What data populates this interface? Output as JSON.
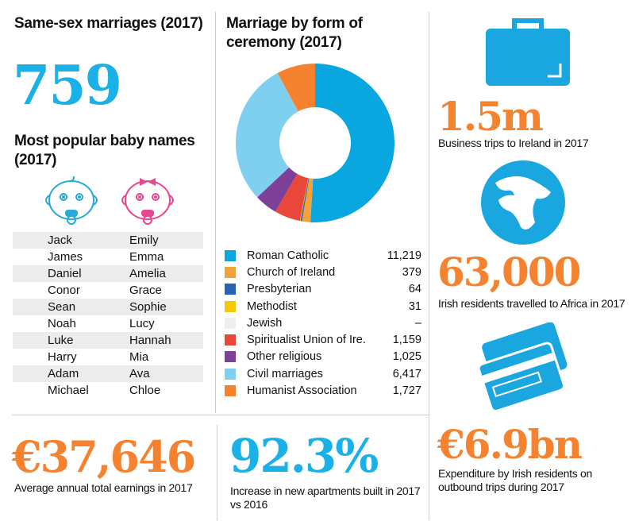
{
  "same_sex": {
    "title": "Same-sex marriages (2017)",
    "value": "759"
  },
  "baby_names": {
    "title": "Most popular baby names (2017)",
    "boys": [
      "Jack",
      "James",
      "Daniel",
      "Conor",
      "Sean",
      "Noah",
      "Luke",
      "Harry",
      "Adam",
      "Michael"
    ],
    "girls": [
      "Emily",
      "Emma",
      "Amelia",
      "Grace",
      "Sophie",
      "Lucy",
      "Hannah",
      "Mia",
      "Ava",
      "Chloe"
    ]
  },
  "chart_data": {
    "type": "pie",
    "title": "Marriage by form of ceremony (2017)",
    "donut": true,
    "categories": [
      "Roman Catholic",
      "Church of Ireland",
      "Presbyterian",
      "Methodist",
      "Jewish",
      "Spiritualist Union of Ire.",
      "Other religious",
      "Civil marriages",
      "Humanist Association"
    ],
    "values": [
      11219,
      379,
      64,
      31,
      0,
      1159,
      1025,
      6417,
      1727
    ],
    "labels": [
      "11,219",
      "379",
      "64",
      "31",
      "–",
      "1,159",
      "1,025",
      "6,417",
      "1,727"
    ],
    "colors": [
      "#0aa6e0",
      "#f2a23a",
      "#2a62b0",
      "#f5c800",
      "#eeeeee",
      "#e9473a",
      "#7d3f98",
      "#7fd0f0",
      "#f4822f"
    ],
    "legend": "bottom"
  },
  "business": {
    "value": "1.5m",
    "caption": "Business trips to Ireland in 2017"
  },
  "africa": {
    "value": "63,000",
    "caption": "Irish residents travelled to Africa in 2017"
  },
  "expenditure": {
    "value": "€6.9bn",
    "caption": "Expenditure by Irish residents on outbound trips during 2017"
  },
  "earnings": {
    "value": "€37,646",
    "caption": "Average annual total earnings in 2017"
  },
  "apartments": {
    "value": "92.3%",
    "caption": "Increase in new apartments built in 2017 vs 2016"
  }
}
